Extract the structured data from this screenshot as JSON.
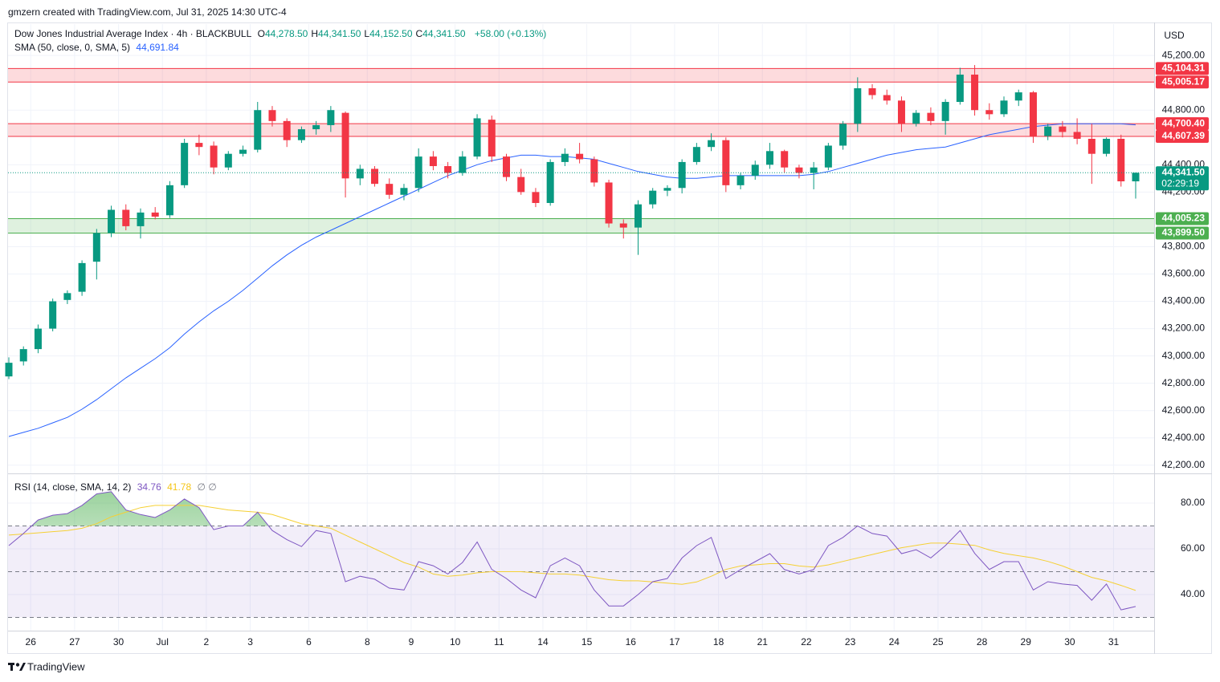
{
  "header": {
    "credit": "gmzern created with TradingView.com, Jul 31, 2025 14:30 UTC-4",
    "currency": "USD",
    "brand": "TradingView"
  },
  "chart_data": [
    {
      "type": "candlestick",
      "legend": {
        "symbol": "Dow Jones Industrial Average Index · 4h · BLACKBULL",
        "ohlc": [
          {
            "key": "O",
            "value": "44,278.50"
          },
          {
            "key": "H",
            "value": "44,341.50"
          },
          {
            "key": "L",
            "value": "44,152.50"
          },
          {
            "key": "C",
            "value": "44,341.50"
          }
        ],
        "change": "+58.00 (+0.13%)"
      },
      "categories": [
        null,
        "26",
        null,
        null,
        "27",
        null,
        null,
        "30",
        null,
        null,
        "Jul",
        null,
        null,
        "2",
        null,
        null,
        "3",
        null,
        null,
        null,
        "6",
        null,
        null,
        null,
        "8",
        null,
        null,
        "9",
        null,
        null,
        "10",
        null,
        null,
        "11",
        null,
        null,
        "14",
        null,
        null,
        "15",
        null,
        null,
        "16",
        null,
        null,
        "17",
        null,
        null,
        "18",
        null,
        null,
        "21",
        null,
        null,
        "22",
        null,
        null,
        "23",
        null,
        null,
        "24",
        null,
        null,
        "25",
        null,
        null,
        "28",
        null,
        null,
        "29",
        null,
        null,
        "30",
        null,
        null,
        "31",
        null,
        null
      ],
      "ohlc": [
        [
          42850,
          42990,
          42830,
          42950
        ],
        [
          42960,
          43070,
          42930,
          43050
        ],
        [
          43050,
          43230,
          43020,
          43200
        ],
        [
          43200,
          43420,
          43180,
          43400
        ],
        [
          43410,
          43480,
          43380,
          43460
        ],
        [
          43470,
          43700,
          43440,
          43680
        ],
        [
          43690,
          43930,
          43560,
          43900
        ],
        [
          43900,
          44100,
          43870,
          44070
        ],
        [
          44070,
          44110,
          43920,
          43950
        ],
        [
          43950,
          44080,
          43860,
          44050
        ],
        [
          44050,
          44090,
          44000,
          44020
        ],
        [
          44030,
          44280,
          44010,
          44250
        ],
        [
          44250,
          44590,
          44230,
          44560
        ],
        [
          44560,
          44620,
          44470,
          44530
        ],
        [
          44540,
          44570,
          44330,
          44380
        ],
        [
          44380,
          44500,
          44360,
          44480
        ],
        [
          44480,
          44540,
          44460,
          44510
        ],
        [
          44510,
          44860,
          44490,
          44800
        ],
        [
          44800,
          44830,
          44680,
          44720
        ],
        [
          44720,
          44740,
          44530,
          44580
        ],
        [
          44580,
          44680,
          44560,
          44660
        ],
        [
          44660,
          44720,
          44620,
          44690
        ],
        [
          44690,
          44830,
          44640,
          44800
        ],
        [
          44780,
          44790,
          44160,
          44300
        ],
        [
          44300,
          44400,
          44250,
          44370
        ],
        [
          44370,
          44390,
          44240,
          44260
        ],
        [
          44260,
          44300,
          44150,
          44180
        ],
        [
          44180,
          44260,
          44140,
          44230
        ],
        [
          44230,
          44520,
          44200,
          44460
        ],
        [
          44460,
          44500,
          44360,
          44390
        ],
        [
          44390,
          44420,
          44300,
          44340
        ],
        [
          44340,
          44500,
          44320,
          44460
        ],
        [
          44460,
          44770,
          44440,
          44740
        ],
        [
          44730,
          44760,
          44420,
          44460
        ],
        [
          44460,
          44480,
          44280,
          44310
        ],
        [
          44310,
          44370,
          44180,
          44200
        ],
        [
          44200,
          44230,
          44090,
          44120
        ],
        [
          44120,
          44440,
          44100,
          44420
        ],
        [
          44420,
          44520,
          44390,
          44480
        ],
        [
          44480,
          44560,
          44410,
          44440
        ],
        [
          44440,
          44460,
          44240,
          44270
        ],
        [
          44270,
          44290,
          43940,
          43970
        ],
        [
          43970,
          44000,
          43860,
          43940
        ],
        [
          43940,
          44140,
          43740,
          44110
        ],
        [
          44110,
          44230,
          44080,
          44210
        ],
        [
          44210,
          44250,
          44170,
          44230
        ],
        [
          44230,
          44440,
          44190,
          44420
        ],
        [
          44420,
          44560,
          44400,
          44530
        ],
        [
          44530,
          44630,
          44500,
          44580
        ],
        [
          44580,
          44600,
          44200,
          44250
        ],
        [
          44250,
          44340,
          44220,
          44320
        ],
        [
          44320,
          44430,
          44290,
          44400
        ],
        [
          44400,
          44560,
          44370,
          44500
        ],
        [
          44500,
          44510,
          44340,
          44380
        ],
        [
          44380,
          44400,
          44300,
          44340
        ],
        [
          44340,
          44420,
          44220,
          44380
        ],
        [
          44380,
          44560,
          44360,
          44540
        ],
        [
          44540,
          44720,
          44510,
          44700
        ],
        [
          44700,
          45040,
          44640,
          44960
        ],
        [
          44960,
          44990,
          44880,
          44910
        ],
        [
          44910,
          44950,
          44840,
          44870
        ],
        [
          44870,
          44900,
          44640,
          44700
        ],
        [
          44700,
          44800,
          44680,
          44780
        ],
        [
          44780,
          44820,
          44690,
          44720
        ],
        [
          44720,
          44880,
          44620,
          44860
        ],
        [
          44860,
          45110,
          44840,
          45060
        ],
        [
          45060,
          45130,
          44760,
          44800
        ],
        [
          44800,
          44850,
          44730,
          44770
        ],
        [
          44770,
          44900,
          44750,
          44870
        ],
        [
          44870,
          44950,
          44830,
          44930
        ],
        [
          44930,
          44940,
          44560,
          44610
        ],
        [
          44610,
          44700,
          44580,
          44680
        ],
        [
          44680,
          44720,
          44600,
          44640
        ],
        [
          44640,
          44740,
          44550,
          44590
        ],
        [
          44590,
          44700,
          44260,
          44480
        ],
        [
          44480,
          44600,
          44460,
          44590
        ],
        [
          44590,
          44620,
          44240,
          44278.5
        ],
        [
          44278.5,
          44341.5,
          44152.5,
          44341.5
        ]
      ],
      "up_color": "#089981",
      "down_color": "#f23645",
      "sma": {
        "name": "SMA (50, close, 0, SMA, 5)",
        "value_label": "44,691.84",
        "color": "#2962ff",
        "values": [
          42410,
          42440,
          42470,
          42510,
          42550,
          42610,
          42680,
          42760,
          42840,
          42910,
          42980,
          43060,
          43160,
          43250,
          43330,
          43400,
          43480,
          43570,
          43660,
          43740,
          43810,
          43870,
          43920,
          43970,
          44020,
          44070,
          44120,
          44170,
          44220,
          44270,
          44320,
          44360,
          44400,
          44430,
          44450,
          44470,
          44470,
          44460,
          44460,
          44450,
          44440,
          44410,
          44380,
          44350,
          44330,
          44310,
          44300,
          44300,
          44310,
          44320,
          44320,
          44320,
          44320,
          44320,
          44320,
          44330,
          44350,
          44380,
          44410,
          44440,
          44470,
          44490,
          44510,
          44520,
          44530,
          44560,
          44590,
          44620,
          44640,
          44660,
          44680,
          44690,
          44700,
          44700,
          44700,
          44700,
          44700,
          44691.84
        ]
      },
      "zones": [
        {
          "top": 45104.31,
          "bottom": 45005.17,
          "top_label": "45,104.31",
          "bottom_label": "45,005.17",
          "color": "#f23645"
        },
        {
          "top": 44700.4,
          "bottom": 44607.39,
          "top_label": "44,700.40",
          "bottom_label": "44,607.39",
          "color": "#f23645"
        },
        {
          "top": 44005.23,
          "bottom": 43899.5,
          "top_label": "44,005.23",
          "bottom_label": "43,899.50",
          "color": "#4caf50"
        }
      ],
      "last_price": {
        "value": 44341.5,
        "label": "44,341.50",
        "countdown": "02:29:19",
        "color": "#089981"
      },
      "ylim": [
        42140,
        45430
      ],
      "yticks": [
        {
          "value": 42200,
          "label": "42,200.00"
        },
        {
          "value": 42400,
          "label": "42,400.00"
        },
        {
          "value": 42600,
          "label": "42,600.00"
        },
        {
          "value": 42800,
          "label": "42,800.00"
        },
        {
          "value": 43000,
          "label": "43,000.00"
        },
        {
          "value": 43200,
          "label": "43,200.00"
        },
        {
          "value": 43400,
          "label": "43,400.00"
        },
        {
          "value": 43600,
          "label": "43,600.00"
        },
        {
          "value": 43800,
          "label": "43,800.00"
        },
        {
          "value": 44200,
          "label": "44,200.00"
        },
        {
          "value": 44400,
          "label": "44,400.00"
        },
        {
          "value": 44800,
          "label": "44,800.00"
        },
        {
          "value": 45200,
          "label": "45,200.00"
        }
      ],
      "grid": true
    },
    {
      "type": "line",
      "legend": {
        "name": "RSI (14, close, SMA, 14, 2)",
        "extra": "∅ ∅"
      },
      "series": [
        {
          "name": "RSI",
          "value_label": "34.76",
          "color": "#7e57c2",
          "values": [
            61.4,
            66.7,
            72.6,
            74.7,
            75.4,
            79,
            84,
            85,
            77,
            75,
            73.7,
            77,
            81.8,
            78,
            68.4,
            70,
            70,
            76,
            68,
            64,
            61,
            68,
            66.7,
            45.6,
            48,
            46.7,
            42.8,
            42,
            54.4,
            52.6,
            49,
            54,
            63,
            51,
            47,
            42,
            38.6,
            52.6,
            56,
            52.6,
            42,
            35,
            35,
            40,
            45.6,
            47,
            56,
            61.4,
            65,
            47,
            50.9,
            54.4,
            57.9,
            50.9,
            49,
            50.9,
            61.4,
            65,
            70,
            66.7,
            65.6,
            57.9,
            59.6,
            56,
            61.4,
            68,
            58,
            51,
            54.4,
            54.4,
            42,
            45.6,
            44.6,
            44,
            37.5,
            44.6,
            33.3,
            34.76
          ]
        },
        {
          "name": "RSI-based MA",
          "value_label": "41.78",
          "color": "#f5d034",
          "values": [
            66,
            66.5,
            67,
            67.5,
            68,
            69,
            71,
            74,
            76,
            78,
            79,
            79,
            79,
            79,
            78,
            77,
            76.5,
            76,
            75,
            73,
            71,
            70,
            69,
            66,
            63,
            60,
            57,
            54,
            52,
            49,
            48,
            48.5,
            49.5,
            50,
            50,
            50,
            49.5,
            49,
            49,
            48.5,
            47.5,
            46.5,
            46,
            46,
            45.5,
            45,
            44.5,
            45.5,
            48,
            51,
            52.5,
            53,
            53.5,
            53.5,
            52.5,
            52,
            53,
            54.5,
            56,
            57.5,
            59,
            60.5,
            61.5,
            62.5,
            62.5,
            62,
            61.5,
            59.5,
            58,
            57,
            56,
            54.5,
            52.5,
            50,
            47.5,
            46,
            44,
            41.78
          ]
        }
      ],
      "levels": [
        30,
        50,
        70
      ],
      "ylim": [
        24.2,
        92.3
      ],
      "yticks": [
        {
          "value": 40,
          "label": "40.00"
        },
        {
          "value": 60,
          "label": "60.00"
        },
        {
          "value": 80,
          "label": "80.00"
        }
      ],
      "grid": true
    }
  ]
}
